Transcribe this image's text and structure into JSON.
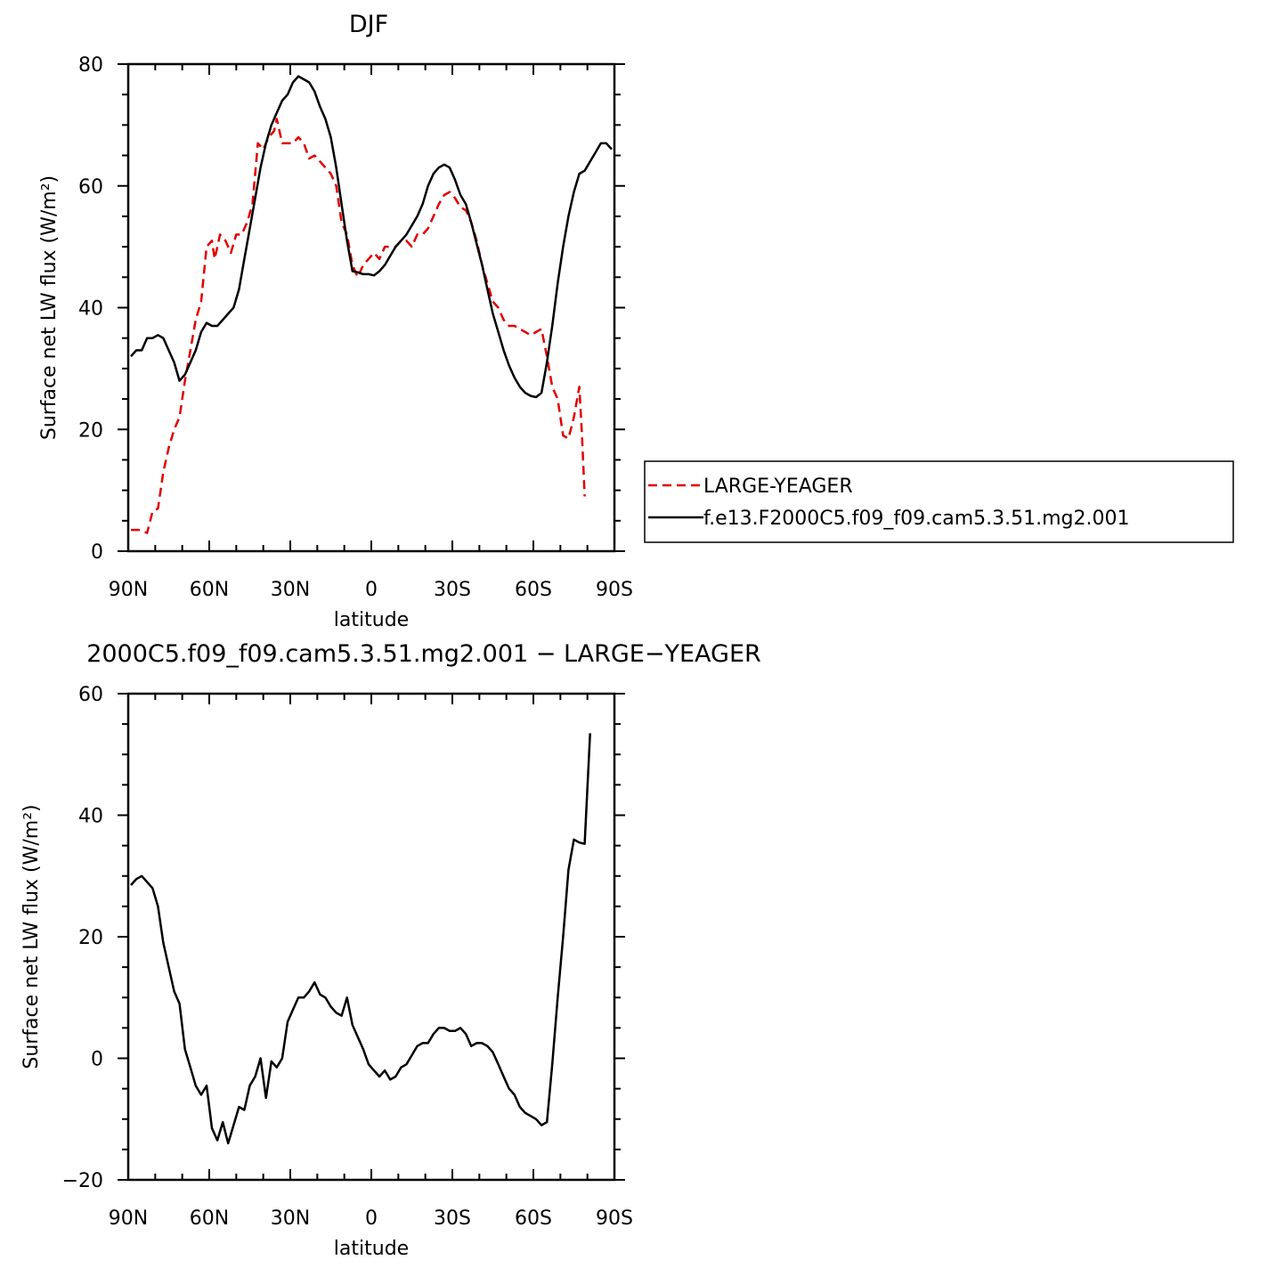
{
  "chart_data": [
    {
      "type": "line",
      "title": "DJF",
      "xlabel": "latitude",
      "ylabel": "Surface net LW flux (W/m²)",
      "xlim": [
        90,
        -90
      ],
      "ylim": [
        0,
        80
      ],
      "xticks": [
        {
          "v": 90,
          "label": "90N"
        },
        {
          "v": 60,
          "label": "60N"
        },
        {
          "v": 30,
          "label": "30N"
        },
        {
          "v": 0,
          "label": "0"
        },
        {
          "v": -30,
          "label": "30S"
        },
        {
          "v": -60,
          "label": "60S"
        },
        {
          "v": -90,
          "label": "90S"
        }
      ],
      "yticks": [
        0,
        20,
        40,
        60,
        80
      ],
      "legend_position": "right",
      "series": [
        {
          "name": "LARGE-YEAGER",
          "color": "#e00000",
          "dash": true,
          "points": [
            [
              89,
              3.5
            ],
            [
              86,
              3.5
            ],
            [
              83,
              3
            ],
            [
              81,
              6.5
            ],
            [
              79,
              7
            ],
            [
              77,
              13
            ],
            [
              75,
              17
            ],
            [
              73,
              20
            ],
            [
              71,
              22
            ],
            [
              69,
              28
            ],
            [
              67,
              33
            ],
            [
              65,
              38
            ],
            [
              63,
              41
            ],
            [
              61,
              50
            ],
            [
              59,
              51
            ],
            [
              58,
              48
            ],
            [
              56,
              52
            ],
            [
              54,
              51
            ],
            [
              52,
              49
            ],
            [
              50,
              52
            ],
            [
              48,
              52
            ],
            [
              46,
              54
            ],
            [
              44,
              57
            ],
            [
              42,
              67
            ],
            [
              40,
              66
            ],
            [
              38,
              68
            ],
            [
              36,
              69
            ],
            [
              35,
              71
            ],
            [
              33,
              67
            ],
            [
              31,
              67
            ],
            [
              29,
              67
            ],
            [
              27,
              68
            ],
            [
              25,
              67
            ],
            [
              23,
              64.5
            ],
            [
              21,
              65
            ],
            [
              19,
              64
            ],
            [
              17,
              63
            ],
            [
              15,
              62
            ],
            [
              13,
              60
            ],
            [
              11,
              54
            ],
            [
              9,
              52
            ],
            [
              7,
              47
            ],
            [
              5,
              45
            ],
            [
              3,
              47
            ],
            [
              1,
              48
            ],
            [
              -1,
              49
            ],
            [
              -3,
              48
            ],
            [
              -5,
              50
            ],
            [
              -7,
              50
            ],
            [
              -9,
              50
            ],
            [
              -11,
              51
            ],
            [
              -13,
              51
            ],
            [
              -15,
              50
            ],
            [
              -17,
              52
            ],
            [
              -19,
              52
            ],
            [
              -21,
              53
            ],
            [
              -23,
              55
            ],
            [
              -25,
              57
            ],
            [
              -27,
              58.5
            ],
            [
              -29,
              59
            ],
            [
              -31,
              58
            ],
            [
              -33,
              56.5
            ],
            [
              -35,
              56
            ],
            [
              -37,
              54
            ],
            [
              -39,
              51
            ],
            [
              -41,
              47
            ],
            [
              -43,
              44
            ],
            [
              -45,
              41
            ],
            [
              -47,
              40
            ],
            [
              -49,
              38
            ],
            [
              -51,
              37
            ],
            [
              -53,
              37
            ],
            [
              -55,
              36.5
            ],
            [
              -57,
              36
            ],
            [
              -59,
              35.5
            ],
            [
              -61,
              36
            ],
            [
              -63,
              36.5
            ],
            [
              -65,
              32
            ],
            [
              -67,
              27
            ],
            [
              -69,
              25
            ],
            [
              -71,
              19
            ],
            [
              -73,
              18.5
            ],
            [
              -75,
              22
            ],
            [
              -77,
              27
            ],
            [
              -78,
              19
            ],
            [
              -79,
              9
            ]
          ]
        },
        {
          "name": "f.e13.F2000C5.f09_f09.cam5.3.51.mg2.001",
          "color": "#000000",
          "dash": false,
          "points": [
            [
              89,
              32
            ],
            [
              87,
              33
            ],
            [
              85,
              33
            ],
            [
              83,
              35
            ],
            [
              81,
              35
            ],
            [
              79,
              35.5
            ],
            [
              77,
              35
            ],
            [
              75,
              33
            ],
            [
              73,
              31
            ],
            [
              71,
              28
            ],
            [
              69,
              29
            ],
            [
              67,
              31
            ],
            [
              65,
              33
            ],
            [
              63,
              36
            ],
            [
              61,
              37.5
            ],
            [
              59,
              37
            ],
            [
              57,
              37
            ],
            [
              55,
              38
            ],
            [
              53,
              39
            ],
            [
              51,
              40
            ],
            [
              49,
              43
            ],
            [
              47,
              48
            ],
            [
              45,
              53
            ],
            [
              43,
              58
            ],
            [
              41,
              63
            ],
            [
              39,
              67
            ],
            [
              37,
              70
            ],
            [
              35,
              72
            ],
            [
              33,
              74
            ],
            [
              31,
              75
            ],
            [
              29,
              77
            ],
            [
              27,
              78
            ],
            [
              25,
              77.5
            ],
            [
              23,
              77
            ],
            [
              21,
              75.5
            ],
            [
              19,
              73
            ],
            [
              17,
              71
            ],
            [
              15,
              68
            ],
            [
              13,
              63
            ],
            [
              11,
              57
            ],
            [
              9,
              51
            ],
            [
              7,
              46
            ],
            [
              5,
              45.8
            ],
            [
              3,
              45.5
            ],
            [
              1,
              45.5
            ],
            [
              -1,
              45.3
            ],
            [
              -3,
              46
            ],
            [
              -5,
              47
            ],
            [
              -7,
              48.5
            ],
            [
              -9,
              50
            ],
            [
              -11,
              51
            ],
            [
              -13,
              52
            ],
            [
              -15,
              53.5
            ],
            [
              -17,
              55
            ],
            [
              -19,
              57
            ],
            [
              -21,
              60
            ],
            [
              -23,
              62
            ],
            [
              -25,
              63
            ],
            [
              -27,
              63.5
            ],
            [
              -29,
              63
            ],
            [
              -31,
              61
            ],
            [
              -33,
              58.5
            ],
            [
              -35,
              57
            ],
            [
              -37,
              54
            ],
            [
              -39,
              50.5
            ],
            [
              -41,
              47
            ],
            [
              -43,
              43
            ],
            [
              -45,
              39
            ],
            [
              -47,
              36
            ],
            [
              -49,
              33
            ],
            [
              -51,
              30.5
            ],
            [
              -53,
              28.5
            ],
            [
              -55,
              27
            ],
            [
              -57,
              26
            ],
            [
              -59,
              25.5
            ],
            [
              -61,
              25.3
            ],
            [
              -63,
              26
            ],
            [
              -65,
              31
            ],
            [
              -67,
              37
            ],
            [
              -69,
              44
            ],
            [
              -71,
              50
            ],
            [
              -73,
              55
            ],
            [
              -75,
              59
            ],
            [
              -77,
              62
            ],
            [
              -79,
              62.5
            ],
            [
              -81,
              64
            ],
            [
              -83,
              65.5
            ],
            [
              -85,
              67
            ],
            [
              -87,
              67
            ],
            [
              -89,
              66
            ]
          ]
        }
      ]
    },
    {
      "type": "line",
      "title": "2000C5.f09_f09.cam5.3.51.mg2.001 − LARGE−YEAGER",
      "xlabel": "latitude",
      "ylabel": "Surface net LW flux (W/m²)",
      "xlim": [
        90,
        -90
      ],
      "ylim": [
        -20,
        60
      ],
      "xticks": [
        {
          "v": 90,
          "label": "90N"
        },
        {
          "v": 60,
          "label": "60N"
        },
        {
          "v": 30,
          "label": "30N"
        },
        {
          "v": 0,
          "label": "0"
        },
        {
          "v": -30,
          "label": "30S"
        },
        {
          "v": -60,
          "label": "60S"
        },
        {
          "v": -90,
          "label": "90S"
        }
      ],
      "yticks": [
        -20,
        0,
        20,
        40,
        60
      ],
      "series": [
        {
          "color": "#000000",
          "dash": false,
          "points": [
            [
              89,
              28.5
            ],
            [
              87,
              29.5
            ],
            [
              85,
              30
            ],
            [
              83,
              29
            ],
            [
              81,
              28
            ],
            [
              79,
              25
            ],
            [
              77,
              19
            ],
            [
              75,
              15
            ],
            [
              73,
              11
            ],
            [
              71,
              9
            ],
            [
              69,
              1.5
            ],
            [
              67,
              -1.5
            ],
            [
              65,
              -4.5
            ],
            [
              63,
              -6
            ],
            [
              61,
              -4.5
            ],
            [
              59,
              -11.5
            ],
            [
              57,
              -13.5
            ],
            [
              55,
              -10.5
            ],
            [
              53,
              -14
            ],
            [
              51,
              -11
            ],
            [
              49,
              -8
            ],
            [
              47,
              -8.5
            ],
            [
              45,
              -4.5
            ],
            [
              43,
              -3
            ],
            [
              41,
              0
            ],
            [
              39,
              -6.5
            ],
            [
              37,
              -0.5
            ],
            [
              35,
              -1.5
            ],
            [
              33,
              0
            ],
            [
              31,
              6
            ],
            [
              29,
              8
            ],
            [
              27,
              10
            ],
            [
              25,
              10
            ],
            [
              23,
              11
            ],
            [
              21,
              12.5
            ],
            [
              19,
              10.5
            ],
            [
              17,
              10
            ],
            [
              15,
              8.5
            ],
            [
              13,
              7.5
            ],
            [
              11,
              7
            ],
            [
              9,
              10
            ],
            [
              7,
              5.5
            ],
            [
              5,
              3.5
            ],
            [
              3,
              1.5
            ],
            [
              1,
              -1
            ],
            [
              -1,
              -2
            ],
            [
              -3,
              -3
            ],
            [
              -5,
              -2
            ],
            [
              -7,
              -3.5
            ],
            [
              -9,
              -3
            ],
            [
              -11,
              -1.5
            ],
            [
              -13,
              -1
            ],
            [
              -15,
              0.5
            ],
            [
              -17,
              2
            ],
            [
              -19,
              2.5
            ],
            [
              -21,
              2.5
            ],
            [
              -23,
              4
            ],
            [
              -25,
              5
            ],
            [
              -27,
              5
            ],
            [
              -29,
              4.5
            ],
            [
              -31,
              4.5
            ],
            [
              -33,
              5
            ],
            [
              -35,
              4
            ],
            [
              -37,
              2
            ],
            [
              -39,
              2.5
            ],
            [
              -41,
              2.5
            ],
            [
              -43,
              2
            ],
            [
              -45,
              1
            ],
            [
              -47,
              -1
            ],
            [
              -49,
              -3
            ],
            [
              -51,
              -5
            ],
            [
              -53,
              -6
            ],
            [
              -55,
              -8
            ],
            [
              -57,
              -9
            ],
            [
              -59,
              -9.5
            ],
            [
              -61,
              -10
            ],
            [
              -63,
              -11
            ],
            [
              -65,
              -10.5
            ],
            [
              -67,
              -1
            ],
            [
              -69,
              10
            ],
            [
              -71,
              20
            ],
            [
              -73,
              31
            ],
            [
              -75,
              36
            ],
            [
              -77,
              35.5
            ],
            [
              -79,
              35.3
            ],
            [
              -81,
              53.5
            ]
          ]
        }
      ]
    }
  ]
}
